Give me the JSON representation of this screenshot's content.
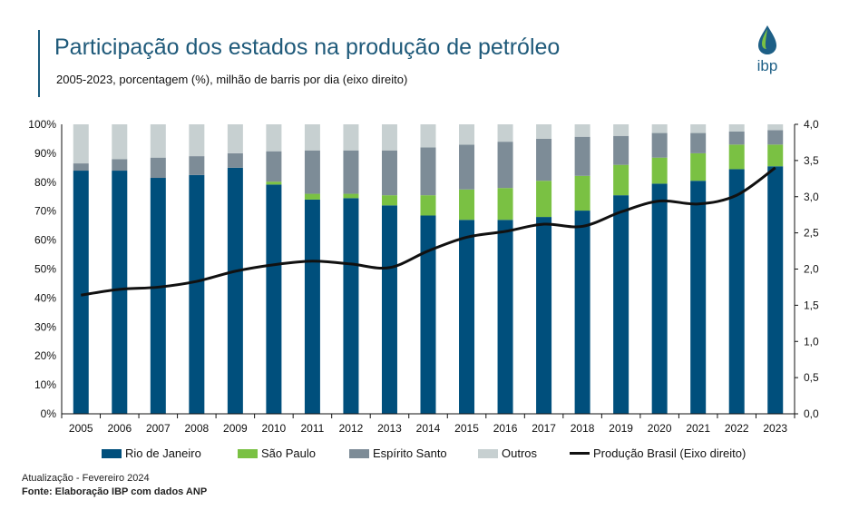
{
  "header": {
    "title": "Participação dos estados na produção de petróleo",
    "subtitle": "2005-2023, porcentagem (%), milhão de barris por dia (eixo direito)"
  },
  "logo": {
    "text": "ibp",
    "icon": "oil-drop-icon",
    "colors": {
      "drop_top": "#7ac143",
      "drop_bottom": "#1d5f86"
    }
  },
  "footer": {
    "update": "Atualização - Fevereiro 2024",
    "source": "Fonte: Elaboração IBP com dados ANP"
  },
  "chart_data": {
    "type": "bar",
    "stacked": true,
    "categories": [
      "2005",
      "2006",
      "2007",
      "2008",
      "2009",
      "2010",
      "2011",
      "2012",
      "2013",
      "2014",
      "2015",
      "2016",
      "2017",
      "2018",
      "2019",
      "2020",
      "2021",
      "2022",
      "2023"
    ],
    "series": [
      {
        "name": "Rio de Janeiro",
        "color": "#004f7c",
        "values": [
          84,
          84,
          81.5,
          82.5,
          85,
          79.2,
          74,
          74.5,
          72,
          68.5,
          67,
          67,
          68,
          70.2,
          75.5,
          79.5,
          80.5,
          84.5,
          85.5
        ]
      },
      {
        "name": "São Paulo",
        "color": "#7ac143",
        "values": [
          0,
          0,
          0,
          0,
          0,
          1,
          2,
          1.5,
          3.5,
          7,
          10.5,
          11,
          12.5,
          12,
          10.5,
          9,
          9.5,
          8.5,
          7.5
        ]
      },
      {
        "name": "Espírito Santo",
        "color": "#7d8c97",
        "values": [
          2.5,
          4,
          7,
          6.5,
          5,
          10.5,
          15,
          15,
          15.5,
          16.5,
          15.5,
          16,
          14.5,
          13.5,
          10,
          8.5,
          7,
          4.5,
          5
        ]
      },
      {
        "name": "Outros",
        "color": "#c7d0d1",
        "values": [
          13.5,
          12,
          11.5,
          11,
          10,
          9.3,
          9,
          9,
          9,
          8,
          7,
          6,
          5,
          4.3,
          4,
          3,
          3,
          2.5,
          2
        ]
      }
    ],
    "line": {
      "name": "Produção Brasil (Eixo direito)",
      "color": "#111111",
      "axis": "right",
      "values": [
        1.64,
        1.72,
        1.75,
        1.83,
        1.97,
        2.06,
        2.11,
        2.07,
        2.02,
        2.25,
        2.44,
        2.52,
        2.62,
        2.59,
        2.79,
        2.94,
        2.9,
        3.02,
        3.4
      ]
    },
    "y_left": {
      "ticks": [
        "0%",
        "10%",
        "20%",
        "30%",
        "40%",
        "50%",
        "60%",
        "70%",
        "80%",
        "90%",
        "100%"
      ],
      "ylim": [
        0,
        100
      ]
    },
    "y_right": {
      "ticks": [
        "0,0",
        "0,5",
        "1,0",
        "1,5",
        "2,0",
        "2,5",
        "3,0",
        "3,5",
        "4,0"
      ],
      "ylim": [
        0,
        4
      ]
    },
    "legend_position": "bottom",
    "grid": false
  }
}
